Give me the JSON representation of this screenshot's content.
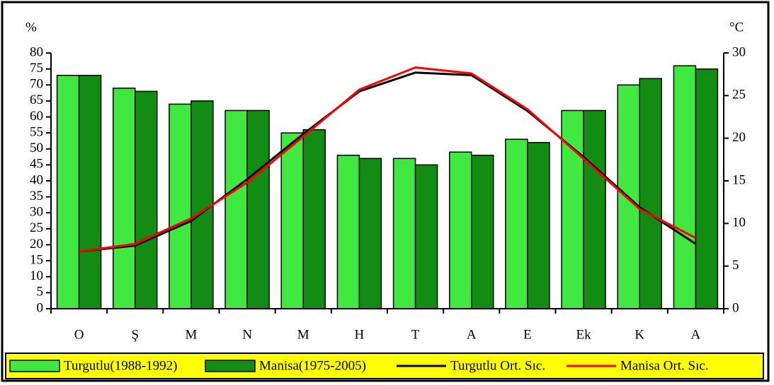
{
  "chart_data": {
    "type": "bar",
    "y_label": "%",
    "y2_label": "°C",
    "categories": [
      "O",
      "Ş",
      "M",
      "N",
      "M",
      "H",
      "T",
      "A",
      "E",
      "Ek",
      "K",
      "A"
    ],
    "series": [
      {
        "name": "Turgutlu(1988-1992)",
        "color": "#40e840",
        "type": "bar",
        "values": [
          73,
          69,
          64,
          62,
          55,
          48,
          47,
          49,
          53,
          62,
          70,
          76
        ]
      },
      {
        "name": "Manisa(1975-2005)",
        "color": "#138c13",
        "type": "bar",
        "values": [
          73,
          68,
          65,
          62,
          56,
          47,
          45,
          48,
          52,
          62,
          72,
          75
        ]
      },
      {
        "name": "Turgutlu Ort. Sıc.",
        "color": "#000000",
        "type": "line",
        "axis": "y2",
        "values": [
          6.7,
          7.4,
          10.3,
          15.2,
          20.5,
          25.5,
          27.7,
          27.4,
          23.2,
          17.8,
          11.9,
          7.6
        ]
      },
      {
        "name": "Manisa Ort. Sıc.",
        "color": "#ff0000",
        "type": "line",
        "axis": "y2",
        "values": [
          6.7,
          7.6,
          10.6,
          14.8,
          20.2,
          25.7,
          28.3,
          27.6,
          23.4,
          17.6,
          11.7,
          8.3
        ]
      }
    ],
    "ylim": [
      0,
      80
    ],
    "yticks": [
      0,
      5,
      10,
      15,
      20,
      25,
      30,
      35,
      40,
      45,
      50,
      55,
      60,
      65,
      70,
      75,
      80
    ],
    "y2lim": [
      0,
      30
    ],
    "y2ticks": [
      0,
      5,
      10,
      15,
      20,
      25,
      30
    ],
    "legend": "bottom"
  }
}
